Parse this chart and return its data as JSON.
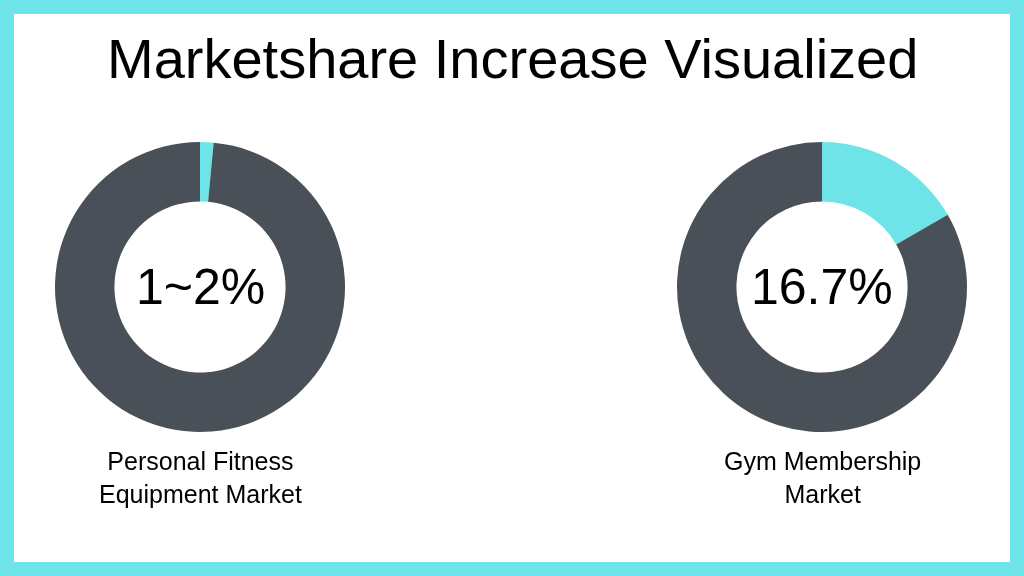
{
  "chart_data": [
    {
      "type": "donut",
      "title": "Marketshare Increase Visualized",
      "categories": [
        null,
        null
      ],
      "values": [
        1.5,
        98.5
      ],
      "colors": [
        "#6ee4e8",
        "#4a5058"
      ],
      "annotations": [
        "1~2%",
        "Personal Fitness\nEquipment Market"
      ]
    },
    {
      "type": "donut",
      "categories": [
        null,
        null
      ],
      "values": [
        16.7,
        83.3
      ],
      "colors": [
        "#6ee4e8",
        "#4a5058"
      ],
      "annotations": [
        "16.7%",
        "Gym Membership\nMarket"
      ]
    }
  ]
}
